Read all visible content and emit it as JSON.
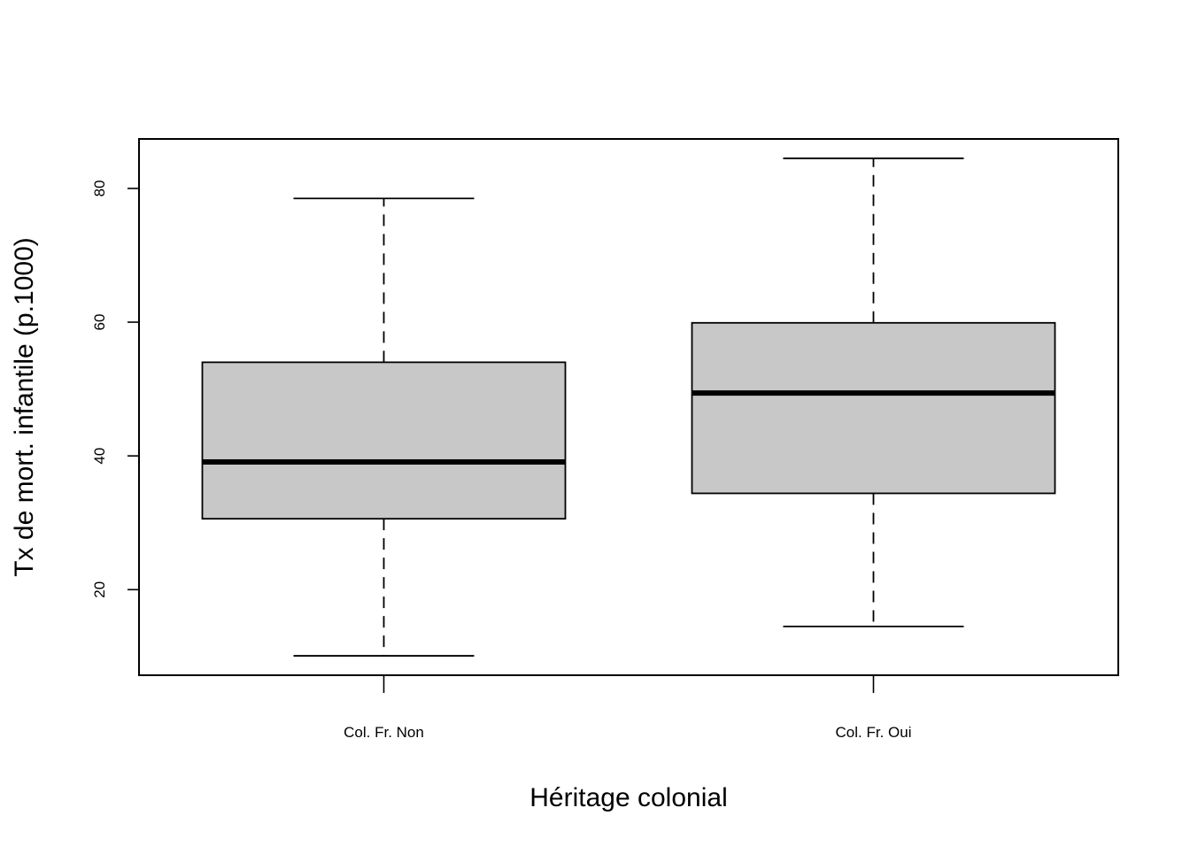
{
  "chart_data": {
    "type": "boxplot",
    "title": "",
    "xlabel": "Héritage colonial",
    "ylabel": "Tx de mort. infantile (p.1000)",
    "categories": [
      "Col. Fr. Non",
      "Col. Fr. Oui"
    ],
    "boxes": [
      {
        "category": "Col. Fr. Non",
        "whisker_low": 10.1,
        "q1": 30.6,
        "median": 39.1,
        "q3": 54.0,
        "whisker_high": 78.5
      },
      {
        "category": "Col. Fr. Oui",
        "whisker_low": 14.5,
        "q1": 34.4,
        "median": 49.4,
        "q3": 59.9,
        "whisker_high": 84.5
      }
    ],
    "yticks": [
      20,
      40,
      60,
      80
    ],
    "ylim": [
      7.2,
      87.4
    ],
    "box_fill": "#c8c8c8",
    "line_color": "#000000",
    "grid": false,
    "legend": "none"
  }
}
